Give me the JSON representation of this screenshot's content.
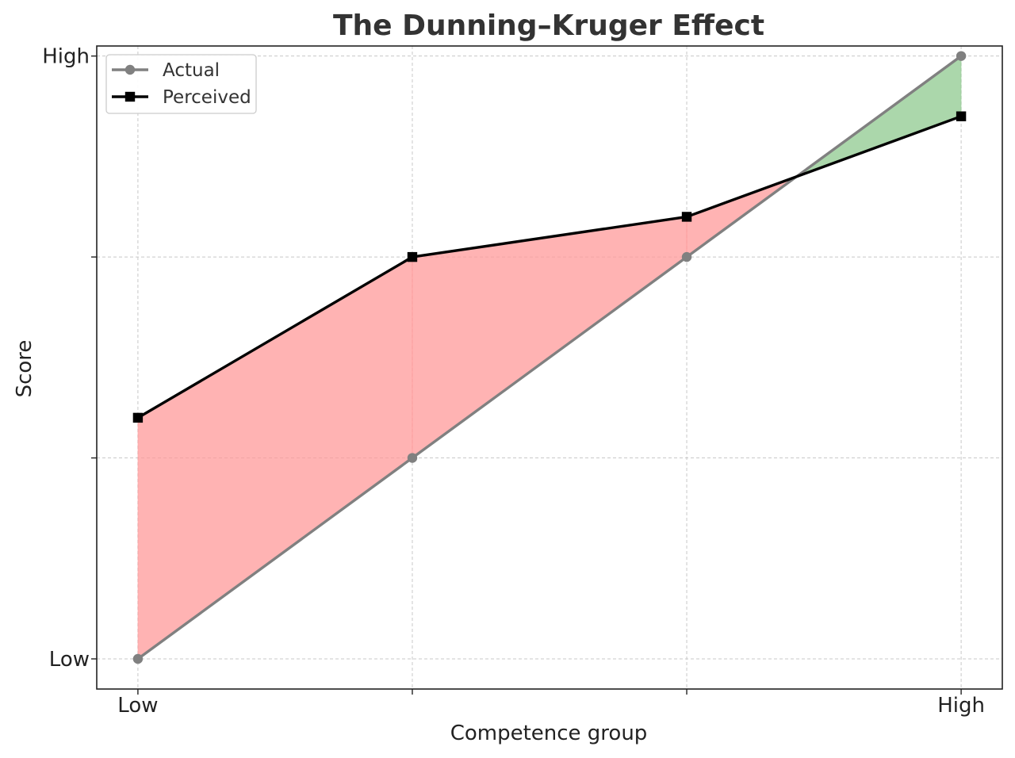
{
  "chart_data": {
    "type": "line",
    "title": "The Dunning–Kruger Effect",
    "xlabel": "Competence group",
    "ylabel": "Score",
    "x": [
      0,
      1,
      2,
      3
    ],
    "x_tick_labels": [
      "Low",
      "",
      "",
      "High"
    ],
    "y_ticks": [
      0,
      1,
      2,
      3
    ],
    "y_tick_labels": [
      "Low",
      "",
      "",
      "High"
    ],
    "xlim": [
      -0.15,
      3.15
    ],
    "ylim": [
      -0.15,
      3.05
    ],
    "grid": true,
    "legend_position": "top-left",
    "series": [
      {
        "name": "Actual",
        "values": [
          0,
          1,
          2,
          3
        ],
        "color": "#808080",
        "marker": "circle"
      },
      {
        "name": "Perceived",
        "values": [
          1.2,
          2.0,
          2.2,
          2.7
        ],
        "color": "#000000",
        "marker": "square"
      }
    ],
    "fill_between": {
      "overestimate_color": "#ff9a9a",
      "underestimate_color": "#8fca8f"
    }
  }
}
